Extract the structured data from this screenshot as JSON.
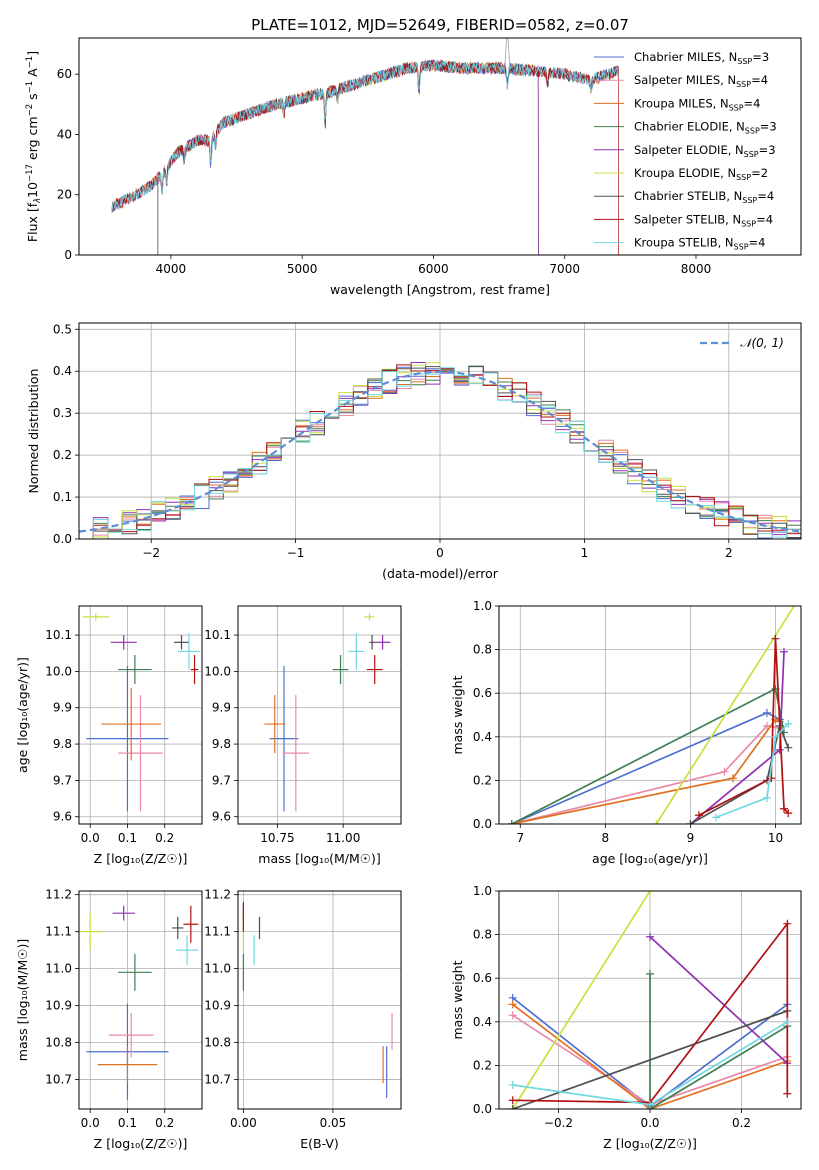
{
  "title": "PLATE=1012, MJD=52649, FIBERID=0582, z=0.07",
  "colors": {
    "Chabrier MILES": "#4f6fd0",
    "Salpeter MILES": "#e88aa8",
    "Kroupa MILES": "#e07020",
    "Chabrier ELODIE": "#3f7f4f",
    "Salpeter ELODIE": "#9030b0",
    "Kroupa ELODIE": "#c8e040",
    "Chabrier STELIB": "#505050",
    "Salpeter STELIB": "#b01010",
    "Kroupa STELIB": "#70d8e0"
  },
  "chart_data": [
    {
      "id": "spectrum",
      "type": "line",
      "xlabel": "wavelength [Angstrom, rest frame]",
      "ylabel_parts": [
        "Flux [f",
        "λ",
        "10",
        "−17",
        " erg cm",
        "−2",
        " s",
        "−1",
        " A",
        "−1",
        "]"
      ],
      "xlim": [
        3300,
        8800
      ],
      "ylim": [
        0,
        72
      ],
      "xticks": [
        4000,
        5000,
        6000,
        7000,
        8000
      ],
      "yticks": [
        0,
        20,
        40,
        60
      ],
      "legend": [
        {
          "name": "Chabrier MILES",
          "nssp": "3"
        },
        {
          "name": "Salpeter MILES",
          "nssp": "4"
        },
        {
          "name": "Kroupa MILES",
          "nssp": "4"
        },
        {
          "name": "Chabrier ELODIE",
          "nssp": "3"
        },
        {
          "name": "Salpeter ELODIE",
          "nssp": "3"
        },
        {
          "name": "Kroupa ELODIE",
          "nssp": "2"
        },
        {
          "name": "Chabrier STELIB",
          "nssp": "4"
        },
        {
          "name": "Salpeter STELIB",
          "nssp": "4"
        },
        {
          "name": "Kroupa STELIB",
          "nssp": "4"
        }
      ],
      "continuum": [
        [
          3550,
          16
        ],
        [
          3700,
          19
        ],
        [
          3850,
          23
        ],
        [
          3950,
          28
        ],
        [
          4050,
          34
        ],
        [
          4200,
          38
        ],
        [
          4300,
          38
        ],
        [
          4400,
          44
        ],
        [
          4600,
          47
        ],
        [
          4800,
          50
        ],
        [
          5000,
          52
        ],
        [
          5200,
          54
        ],
        [
          5500,
          58
        ],
        [
          5800,
          62
        ],
        [
          6000,
          63
        ],
        [
          6200,
          62
        ],
        [
          6500,
          62
        ],
        [
          6800,
          61
        ],
        [
          7000,
          60
        ],
        [
          7200,
          58
        ],
        [
          7400,
          61
        ],
        [
          7500,
          63
        ]
      ],
      "absorption": [
        [
          3933,
          -6
        ],
        [
          3968,
          -5
        ],
        [
          4101,
          -4
        ],
        [
          4304,
          -9
        ],
        [
          4340,
          -4
        ],
        [
          4861,
          -4
        ],
        [
          5175,
          -10
        ],
        [
          5270,
          -3
        ],
        [
          5890,
          -8
        ],
        [
          6563,
          -5
        ],
        [
          6870,
          -4
        ],
        [
          7200,
          -3
        ]
      ],
      "range_miles": [
        3550,
        7410
      ],
      "range_elodie": [
        3900,
        6800
      ],
      "range_stelib": [
        3550,
        7410
      ]
    },
    {
      "id": "residuals",
      "type": "histogram",
      "xlabel": "(data-model)/error",
      "ylabel": "Normed distribution",
      "xlim": [
        -2.5,
        2.5
      ],
      "ylim": [
        0,
        0.515
      ],
      "xticks": [
        -2,
        -1,
        0,
        1,
        2
      ],
      "xtick_labels": [
        "−2",
        "−1",
        "0",
        "1",
        "2"
      ],
      "yticks": [
        0.0,
        0.1,
        0.2,
        0.3,
        0.4,
        0.5
      ],
      "ytick_labels": [
        "0.0",
        "0.1",
        "0.2",
        "0.3",
        "0.4",
        "0.5"
      ],
      "bin_width": 0.1,
      "reference_curve": "N(0,1)",
      "legend_label": "𝒩(0, 1)"
    },
    {
      "id": "age-Z",
      "type": "scatter",
      "xlabel": "Z [log₁₀(Z/Z☉)]",
      "ylabel": "age  [log₁₀(age/yr)]",
      "xlim": [
        -0.03,
        0.3
      ],
      "ylim": [
        9.58,
        10.18
      ],
      "xticks": [
        0.0,
        0.1,
        0.2
      ],
      "xtick_labels": [
        "0.0",
        "0.1",
        "0.2"
      ],
      "yticks": [
        9.6,
        9.7,
        9.8,
        9.9,
        10.0,
        10.1
      ],
      "ytick_labels": [
        "9.6",
        "9.7",
        "9.8",
        "9.9",
        "10.0",
        "10.1"
      ],
      "points": [
        {
          "series": "Chabrier MILES",
          "x": 0.1,
          "xerr": 0.11,
          "y": 9.815,
          "yerr": 0.2
        },
        {
          "series": "Salpeter MILES",
          "x": 0.135,
          "xerr": 0.06,
          "y": 9.775,
          "yerr": 0.16
        },
        {
          "series": "Kroupa MILES",
          "x": 0.11,
          "xerr": 0.08,
          "y": 9.855,
          "yerr": 0.1
        },
        {
          "series": "Chabrier ELODIE",
          "x": 0.12,
          "xerr": 0.045,
          "y": 10.005,
          "yerr": 0.04
        },
        {
          "series": "Salpeter ELODIE",
          "x": 0.09,
          "xerr": 0.035,
          "y": 10.08,
          "yerr": 0.02
        },
        {
          "series": "Kroupa ELODIE",
          "x": 0.015,
          "xerr": 0.035,
          "y": 10.15,
          "yerr": 0.01
        },
        {
          "series": "Chabrier STELIB",
          "x": 0.245,
          "xerr": 0.02,
          "y": 10.08,
          "yerr": 0.02
        },
        {
          "series": "Salpeter STELIB",
          "x": 0.28,
          "xerr": 0.01,
          "y": 10.005,
          "yerr": 0.04
        },
        {
          "series": "Kroupa STELIB",
          "x": 0.265,
          "xerr": 0.03,
          "y": 10.055,
          "yerr": 0.05
        }
      ]
    },
    {
      "id": "age-mass",
      "type": "scatter",
      "xlabel": "mass [log₁₀(M/M☉)]",
      "ylabel": "",
      "xlim": [
        10.6,
        11.22
      ],
      "ylim": [
        9.58,
        10.18
      ],
      "xticks": [
        10.75,
        11.0
      ],
      "xtick_labels": [
        "10.75",
        "11.00"
      ],
      "yticks": [
        9.6,
        9.7,
        9.8,
        9.9,
        10.0,
        10.1
      ],
      "ytick_labels": [
        "9.6",
        "9.7",
        "9.8",
        "9.9",
        "10.0",
        "10.1"
      ],
      "points": [
        {
          "series": "Chabrier MILES",
          "x": 10.775,
          "xerr": 0.055,
          "y": 9.815,
          "yerr": 0.2
        },
        {
          "series": "Salpeter MILES",
          "x": 10.82,
          "xerr": 0.05,
          "y": 9.775,
          "yerr": 0.16
        },
        {
          "series": "Kroupa MILES",
          "x": 10.74,
          "xerr": 0.04,
          "y": 9.855,
          "yerr": 0.08
        },
        {
          "series": "Chabrier ELODIE",
          "x": 10.99,
          "xerr": 0.03,
          "y": 10.005,
          "yerr": 0.04
        },
        {
          "series": "Salpeter ELODIE",
          "x": 11.15,
          "xerr": 0.03,
          "y": 10.08,
          "yerr": 0.02
        },
        {
          "series": "Kroupa ELODIE",
          "x": 11.1,
          "xerr": 0.02,
          "y": 10.15,
          "yerr": 0.01
        },
        {
          "series": "Chabrier STELIB",
          "x": 11.11,
          "xerr": 0.01,
          "y": 10.08,
          "yerr": 0.02
        },
        {
          "series": "Salpeter STELIB",
          "x": 11.12,
          "xerr": 0.03,
          "y": 10.005,
          "yerr": 0.04
        },
        {
          "series": "Kroupa STELIB",
          "x": 11.05,
          "xerr": 0.03,
          "y": 10.055,
          "yerr": 0.05
        }
      ]
    },
    {
      "id": "massweight-age",
      "type": "line",
      "xlabel": "age  [log₁₀(age/yr)]",
      "ylabel": "mass weight",
      "xlim": [
        6.75,
        10.3
      ],
      "ylim": [
        0,
        1.0
      ],
      "xticks": [
        7,
        8,
        9,
        10
      ],
      "xtick_labels": [
        "7",
        "8",
        "9",
        "10"
      ],
      "yticks": [
        0.0,
        0.2,
        0.4,
        0.6,
        0.8,
        1.0
      ],
      "ytick_labels": [
        "0.0",
        "0.2",
        "0.4",
        "0.6",
        "0.8",
        "1.0"
      ],
      "series": [
        {
          "name": "Chabrier MILES",
          "points": [
            [
              6.9,
              0.0
            ],
            [
              9.9,
              0.51
            ],
            [
              10.05,
              0.48
            ]
          ]
        },
        {
          "name": "Salpeter MILES",
          "points": [
            [
              6.9,
              0.0
            ],
            [
              9.4,
              0.24
            ],
            [
              9.9,
              0.45
            ],
            [
              10.05,
              0.44
            ]
          ]
        },
        {
          "name": "Kroupa MILES",
          "points": [
            [
              6.9,
              0.0
            ],
            [
              9.5,
              0.21
            ],
            [
              10.0,
              0.48
            ],
            [
              10.05,
              0.47
            ]
          ]
        },
        {
          "name": "Chabrier ELODIE",
          "points": [
            [
              6.9,
              0.0
            ],
            [
              10.0,
              0.62
            ],
            [
              10.1,
              0.42
            ]
          ]
        },
        {
          "name": "Salpeter ELODIE",
          "points": [
            [
              9.0,
              0.0
            ],
            [
              10.05,
              0.34
            ],
            [
              10.1,
              0.79
            ]
          ]
        },
        {
          "name": "Kroupa ELODIE",
          "points": [
            [
              8.6,
              0.0
            ],
            [
              10.3,
              1.05
            ]
          ]
        },
        {
          "name": "Chabrier STELIB",
          "points": [
            [
              9.0,
              0.0
            ],
            [
              9.9,
              0.2
            ],
            [
              10.05,
              0.45
            ],
            [
              10.15,
              0.35
            ]
          ]
        },
        {
          "name": "Salpeter STELIB",
          "points": [
            [
              9.1,
              0.04
            ],
            [
              9.95,
              0.21
            ],
            [
              10.0,
              0.85
            ],
            [
              10.1,
              0.07
            ],
            [
              10.15,
              0.05
            ]
          ]
        },
        {
          "name": "Kroupa STELIB",
          "points": [
            [
              9.3,
              0.03
            ],
            [
              9.9,
              0.12
            ],
            [
              10.0,
              0.4
            ],
            [
              10.15,
              0.46
            ]
          ]
        }
      ]
    },
    {
      "id": "mass-Z",
      "type": "scatter",
      "xlabel": "Z [log₁₀(Z/Z☉)]",
      "ylabel": "mass [log₁₀(M/M☉)]",
      "xlim": [
        -0.03,
        0.3
      ],
      "ylim": [
        10.62,
        11.21
      ],
      "xticks": [
        0.0,
        0.1,
        0.2
      ],
      "xtick_labels": [
        "0.0",
        "0.1",
        "0.2"
      ],
      "yticks": [
        10.7,
        10.8,
        10.9,
        11.0,
        11.1,
        11.2
      ],
      "ytick_labels": [
        "10.7",
        "10.8",
        "10.9",
        "11.0",
        "11.1",
        "11.2"
      ],
      "points": [
        {
          "series": "Chabrier MILES",
          "x": 0.1,
          "xerr": 0.11,
          "y": 10.775,
          "yerr": 0.13
        },
        {
          "series": "Salpeter MILES",
          "x": 0.11,
          "xerr": 0.06,
          "y": 10.82,
          "yerr": 0.06
        },
        {
          "series": "Kroupa MILES",
          "x": 0.1,
          "xerr": 0.08,
          "y": 10.74,
          "yerr": 0.05
        },
        {
          "series": "Chabrier ELODIE",
          "x": 0.12,
          "xerr": 0.045,
          "y": 10.99,
          "yerr": 0.05
        },
        {
          "series": "Salpeter ELODIE",
          "x": 0.09,
          "xerr": 0.03,
          "y": 11.15,
          "yerr": 0.02
        },
        {
          "series": "Kroupa ELODIE",
          "x": 0.0,
          "xerr": 0.035,
          "y": 11.1,
          "yerr": 0.05
        },
        {
          "series": "Chabrier STELIB",
          "x": 0.235,
          "xerr": 0.015,
          "y": 11.11,
          "yerr": 0.03
        },
        {
          "series": "Salpeter STELIB",
          "x": 0.27,
          "xerr": 0.02,
          "y": 11.12,
          "yerr": 0.05
        },
        {
          "series": "Kroupa STELIB",
          "x": 0.26,
          "xerr": 0.03,
          "y": 11.05,
          "yerr": 0.04
        }
      ]
    },
    {
      "id": "mass-EBV",
      "type": "scatter",
      "xlabel": "E(B-V)",
      "ylabel": "",
      "xlim": [
        -0.003,
        0.088
      ],
      "ylim": [
        10.62,
        11.21
      ],
      "xticks": [
        0.0,
        0.05
      ],
      "xtick_labels": [
        "0.00",
        "0.05"
      ],
      "yticks": [
        10.7,
        10.8,
        10.9,
        11.0,
        11.1,
        11.2
      ],
      "ytick_labels": [
        "10.7",
        "10.8",
        "10.9",
        "11.0",
        "11.1",
        "11.2"
      ],
      "points": [
        {
          "series": "Chabrier MILES",
          "x": 0.08,
          "xerr": 0.0,
          "y": 10.72,
          "yerr": 0.07
        },
        {
          "series": "Salpeter MILES",
          "x": 0.083,
          "xerr": 0.0,
          "y": 10.83,
          "yerr": 0.05
        },
        {
          "series": "Kroupa MILES",
          "x": 0.078,
          "xerr": 0.0,
          "y": 10.74,
          "yerr": 0.05
        },
        {
          "series": "Chabrier ELODIE",
          "x": 0.0,
          "xerr": 0.0,
          "y": 10.99,
          "yerr": 0.05
        },
        {
          "series": "Salpeter ELODIE",
          "x": 0.0,
          "xerr": 0.0,
          "y": 11.15,
          "yerr": 0.02
        },
        {
          "series": "Kroupa ELODIE",
          "x": 0.0,
          "xerr": 0.0,
          "y": 11.1,
          "yerr": 0.05
        },
        {
          "series": "Chabrier STELIB",
          "x": 0.009,
          "xerr": 0.0,
          "y": 11.11,
          "yerr": 0.03
        },
        {
          "series": "Salpeter STELIB",
          "x": 0.0,
          "xerr": 0.0,
          "y": 11.14,
          "yerr": 0.04
        },
        {
          "series": "Kroupa STELIB",
          "x": 0.006,
          "xerr": 0.0,
          "y": 11.05,
          "yerr": 0.04
        }
      ]
    },
    {
      "id": "massweight-Z",
      "type": "line",
      "xlabel": "Z [log₁₀(Z/Z☉)]",
      "ylabel": "mass weight",
      "xlim": [
        -0.33,
        0.33
      ],
      "ylim": [
        0,
        1.0
      ],
      "xticks": [
        -0.2,
        0.0,
        0.2
      ],
      "xtick_labels": [
        "−0.2",
        "0.0",
        "0.2"
      ],
      "yticks": [
        0.0,
        0.2,
        0.4,
        0.6,
        0.8,
        1.0
      ],
      "ytick_labels": [
        "0.0",
        "0.2",
        "0.4",
        "0.6",
        "0.8",
        "1.0"
      ],
      "series": [
        {
          "name": "Chabrier MILES",
          "points": [
            [
              -0.3,
              0.51
            ],
            [
              0.0,
              0.01
            ],
            [
              0.3,
              0.48
            ]
          ]
        },
        {
          "name": "Salpeter MILES",
          "points": [
            [
              -0.3,
              0.43
            ],
            [
              0.0,
              0.02
            ],
            [
              0.3,
              0.24
            ]
          ]
        },
        {
          "name": "Kroupa MILES",
          "points": [
            [
              -0.3,
              0.48
            ],
            [
              0.0,
              0.0
            ],
            [
              0.3,
              0.22
            ]
          ]
        },
        {
          "name": "Chabrier ELODIE",
          "points": [
            [
              0.0,
              0.62
            ],
            [
              0.0,
              0.0
            ],
            [
              0.3,
              0.38
            ]
          ]
        },
        {
          "name": "Salpeter ELODIE",
          "points": [
            [
              0.0,
              0.79
            ],
            [
              0.3,
              0.21
            ]
          ]
        },
        {
          "name": "Kroupa ELODIE",
          "points": [
            [
              -0.3,
              0.0
            ],
            [
              0.0,
              1.0
            ]
          ]
        },
        {
          "name": "Chabrier STELIB",
          "points": [
            [
              -0.3,
              0.0
            ],
            [
              0.3,
              0.45
            ]
          ]
        },
        {
          "name": "Salpeter STELIB",
          "points": [
            [
              -0.3,
              0.04
            ],
            [
              0.0,
              0.03
            ],
            [
              0.3,
              0.85
            ],
            [
              0.3,
              0.07
            ]
          ]
        },
        {
          "name": "Kroupa STELIB",
          "points": [
            [
              -0.3,
              0.11
            ],
            [
              0.0,
              0.02
            ],
            [
              0.3,
              0.4
            ]
          ]
        }
      ]
    }
  ]
}
